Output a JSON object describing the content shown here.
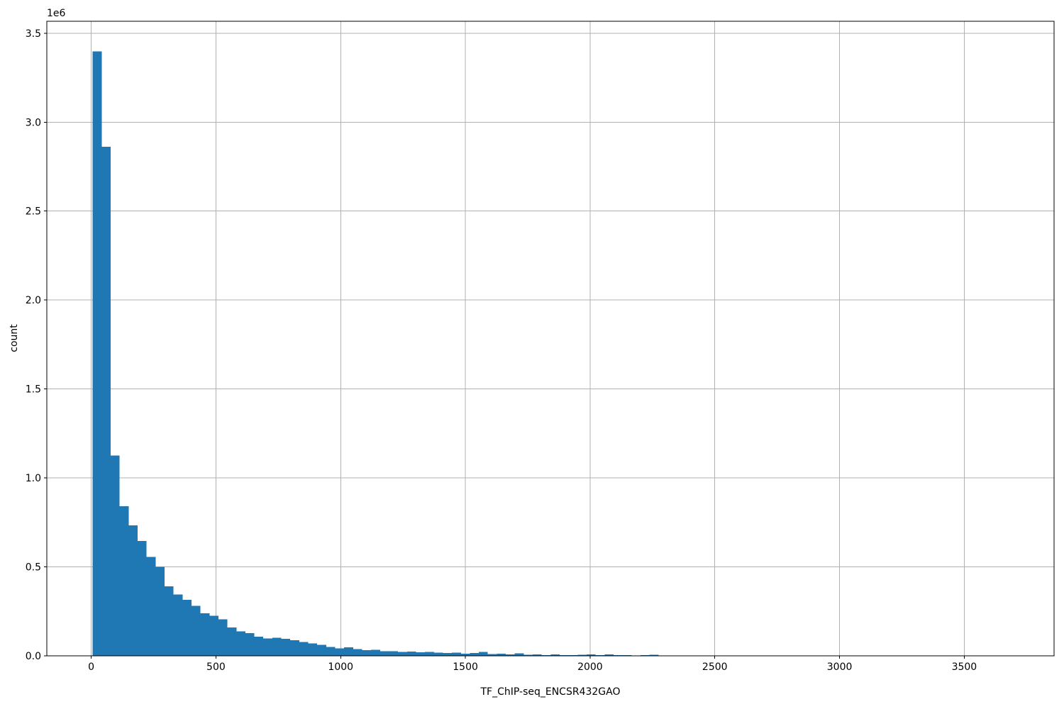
{
  "figure": {
    "background": "#ffffff",
    "text_color": "#000000"
  },
  "chart_data": {
    "type": "bar",
    "subtype": "histogram",
    "title": "",
    "xlabel": "TF_ChIP-seq_ENCSR432GAO",
    "ylabel": "count",
    "y_offset_text": "1e6",
    "grid": true,
    "legend": false,
    "grid_color": "#b0b0b0",
    "axis_color": "#000000",
    "bar_color": "#1f77b4",
    "xlim": [
      -178,
      3860
    ],
    "ylim": [
      0,
      3567000
    ],
    "x_ticks": [
      0,
      500,
      1000,
      1500,
      2000,
      2500,
      3000,
      3500
    ],
    "x_tick_labels": [
      "0",
      "500",
      "1000",
      "1500",
      "2000",
      "2500",
      "3000",
      "3500"
    ],
    "y_ticks": [
      0,
      500000,
      1000000,
      1500000,
      2000000,
      2500000,
      3000000,
      3500000
    ],
    "y_tick_labels": [
      "0.0",
      "0.5",
      "1.0",
      "1.5",
      "2.0",
      "2.5",
      "3.0",
      "3.5"
    ],
    "histogram": {
      "bin_start": 6,
      "bin_width": 36,
      "counts": [
        3397000,
        2862000,
        1126000,
        840000,
        733000,
        646000,
        556000,
        500000,
        390000,
        345000,
        314000,
        280000,
        240000,
        226000,
        205000,
        159000,
        137000,
        127000,
        108000,
        98000,
        102000,
        96000,
        88000,
        77000,
        70000,
        62000,
        50000,
        42000,
        47000,
        38000,
        32000,
        33000,
        25000,
        26000,
        21000,
        23000,
        20000,
        22000,
        17000,
        15000,
        17000,
        12000,
        15000,
        22000,
        10000,
        12000,
        7000,
        13000,
        6000,
        8000,
        4000,
        8000,
        3000,
        4000,
        6000,
        7000,
        4000,
        8000,
        3000,
        4000,
        2000,
        3000,
        6000
      ]
    }
  }
}
